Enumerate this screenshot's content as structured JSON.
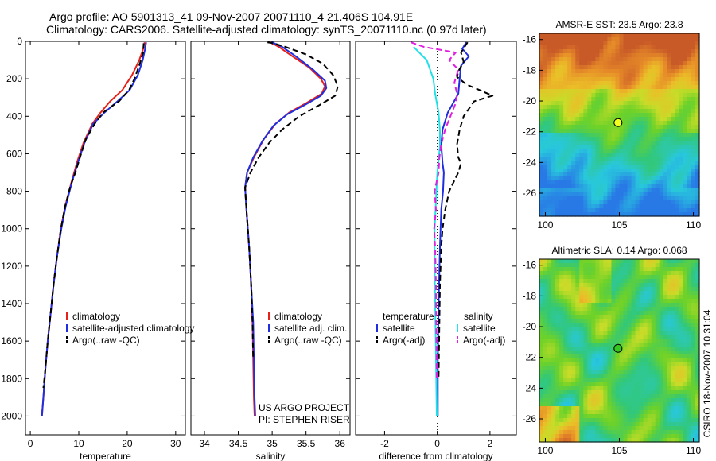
{
  "header": {
    "line1": "Argo profile: AO 5901313_41 09-Nov-2007 20071110_4 21.406S 104.91E",
    "line2": "Climatology: CARS2006. Satellite-adjusted climatology: synTS_20071110.nc (0.97d later)"
  },
  "side_label": "CSIRO 18-Nov-2007 10:31:04",
  "project": {
    "line1": "US ARGO PROJECT",
    "line2": "PI: STEPHEN RISER"
  },
  "colors": {
    "climatology": "#e8201a",
    "satellite": "#1f2fe0",
    "argo": "#000000",
    "satellite_s": "#22e0e6",
    "argo_s": "#e020e0"
  },
  "chart_data": [
    {
      "type": "line",
      "xlabel": "temperature",
      "ylabel": "",
      "xlim": [
        -1,
        32
      ],
      "ylim": [
        2100,
        0
      ],
      "xticks": [
        0,
        10,
        20,
        30
      ],
      "yticks": [
        0,
        200,
        400,
        600,
        800,
        1000,
        1200,
        1400,
        1600,
        1800,
        2000
      ],
      "legend": [
        "climatology",
        "satellite-adjusted climatology",
        "Argo(..raw -QC)"
      ],
      "series": [
        {
          "name": "climatology",
          "color": "#e8201a",
          "dash": "",
          "points": [
            [
              23.6,
              5
            ],
            [
              23.3,
              40
            ],
            [
              22.5,
              100
            ],
            [
              21,
              180
            ],
            [
              19,
              260
            ],
            [
              16.5,
              320
            ],
            [
              14.5,
              380
            ],
            [
              12.8,
              440
            ],
            [
              11,
              540
            ],
            [
              9.7,
              640
            ],
            [
              8.5,
              750
            ],
            [
              7.2,
              880
            ],
            [
              6.3,
              1000
            ],
            [
              5.5,
              1150
            ],
            [
              4.8,
              1300
            ],
            [
              4.2,
              1450
            ],
            [
              3.6,
              1600
            ],
            [
              3.1,
              1750
            ],
            [
              2.7,
              1900
            ],
            [
              2.4,
              2000
            ]
          ]
        },
        {
          "name": "satellite-adjusted climatology",
          "color": "#1f2fe0",
          "dash": "",
          "points": [
            [
              23.9,
              5
            ],
            [
              23.7,
              40
            ],
            [
              23.2,
              100
            ],
            [
              22.2,
              180
            ],
            [
              20.5,
              260
            ],
            [
              18,
              320
            ],
            [
              15.3,
              380
            ],
            [
              13,
              440
            ],
            [
              11.2,
              540
            ],
            [
              9.9,
              640
            ],
            [
              8.6,
              750
            ],
            [
              7.3,
              880
            ],
            [
              6.4,
              1000
            ],
            [
              5.5,
              1150
            ],
            [
              4.8,
              1300
            ],
            [
              4.2,
              1450
            ],
            [
              3.6,
              1600
            ],
            [
              3.1,
              1750
            ],
            [
              2.7,
              1900
            ],
            [
              2.4,
              2000
            ]
          ]
        },
        {
          "name": "Argo(..raw -QC)",
          "color": "#000000",
          "dash": "7,4",
          "points": [
            [
              23.4,
              10
            ],
            [
              23.3,
              60
            ],
            [
              22.6,
              120
            ],
            [
              21.5,
              200
            ],
            [
              20.4,
              260
            ],
            [
              18.3,
              320
            ],
            [
              15,
              380
            ],
            [
              13.3,
              440
            ],
            [
              11.5,
              520
            ],
            [
              10.5,
              600
            ],
            [
              9.3,
              700
            ],
            [
              8.2,
              780
            ],
            [
              7.2,
              880
            ],
            [
              6.3,
              1000
            ],
            [
              5.5,
              1150
            ],
            [
              4.8,
              1300
            ],
            [
              4.2,
              1450
            ],
            [
              3.6,
              1600
            ],
            [
              3.1,
              1750
            ],
            [
              2.7,
              1850
            ]
          ]
        }
      ]
    },
    {
      "type": "line",
      "xlabel": "salinity",
      "ylabel": "",
      "xlim": [
        33.8,
        36.15
      ],
      "ylim": [
        2100,
        0
      ],
      "xticks": [
        34,
        34.5,
        35,
        35.5,
        36
      ],
      "legend": [
        "climatology",
        "satellite adj. clim.",
        "Argo(..raw -QC)"
      ],
      "series": [
        {
          "name": "climatology",
          "color": "#e8201a",
          "dash": "",
          "points": [
            [
              34.98,
              5
            ],
            [
              35.1,
              30
            ],
            [
              35.3,
              80
            ],
            [
              35.55,
              140
            ],
            [
              35.72,
              200
            ],
            [
              35.78,
              240
            ],
            [
              35.73,
              280
            ],
            [
              35.5,
              330
            ],
            [
              35.25,
              380
            ],
            [
              35.05,
              440
            ],
            [
              34.88,
              520
            ],
            [
              34.73,
              620
            ],
            [
              34.63,
              700
            ],
            [
              34.6,
              780
            ],
            [
              34.62,
              900
            ],
            [
              34.66,
              1100
            ],
            [
              34.69,
              1300
            ],
            [
              34.71,
              1500
            ],
            [
              34.72,
              1700
            ],
            [
              34.73,
              1900
            ],
            [
              34.74,
              2000
            ]
          ]
        },
        {
          "name": "satellite adj. clim.",
          "color": "#1f2fe0",
          "dash": "",
          "points": [
            [
              35.0,
              5
            ],
            [
              35.15,
              30
            ],
            [
              35.35,
              80
            ],
            [
              35.6,
              150
            ],
            [
              35.78,
              210
            ],
            [
              35.8,
              250
            ],
            [
              35.72,
              290
            ],
            [
              35.48,
              340
            ],
            [
              35.22,
              390
            ],
            [
              35.02,
              450
            ],
            [
              34.86,
              530
            ],
            [
              34.72,
              620
            ],
            [
              34.63,
              700
            ],
            [
              34.6,
              780
            ],
            [
              34.62,
              900
            ],
            [
              34.66,
              1100
            ],
            [
              34.69,
              1300
            ],
            [
              34.72,
              1500
            ],
            [
              34.73,
              1700
            ],
            [
              34.74,
              1900
            ],
            [
              34.75,
              2000
            ]
          ]
        },
        {
          "name": "Argo(..raw -QC)",
          "color": "#000000",
          "dash": "7,4",
          "points": [
            [
              34.93,
              5
            ],
            [
              35.02,
              10
            ],
            [
              35.2,
              30
            ],
            [
              35.5,
              70
            ],
            [
              35.75,
              120
            ],
            [
              35.9,
              180
            ],
            [
              35.97,
              240
            ],
            [
              35.93,
              290
            ],
            [
              35.7,
              340
            ],
            [
              35.4,
              400
            ],
            [
              35.15,
              470
            ],
            [
              34.96,
              540
            ],
            [
              34.8,
              620
            ],
            [
              34.68,
              700
            ],
            [
              34.6,
              780
            ],
            [
              34.62,
              900
            ],
            [
              34.66,
              1100
            ],
            [
              34.69,
              1300
            ],
            [
              34.71,
              1500
            ],
            [
              34.72,
              1700
            ]
          ]
        }
      ]
    },
    {
      "type": "line",
      "xlabel": "difference from climatology",
      "ylabel": "",
      "xlim": [
        -3.1,
        3.0
      ],
      "ylim": [
        2100,
        0
      ],
      "xticks": [
        -2,
        0,
        2
      ],
      "legend_left_title": "temperature",
      "legend_right_title": "salinity",
      "legend": [
        "satellite",
        "Argo(-adj)",
        "satellite",
        "Argo(-adj)"
      ],
      "series": [
        {
          "name": "satellite",
          "color": "#1f2fe0",
          "dash": "",
          "points": [
            [
              1.1,
              5
            ],
            [
              0.95,
              40
            ],
            [
              1.2,
              80
            ],
            [
              0.9,
              130
            ],
            [
              0.85,
              200
            ],
            [
              0.8,
              280
            ],
            [
              0.4,
              380
            ],
            [
              0.2,
              470
            ],
            [
              0.15,
              550
            ],
            [
              0.2,
              650
            ],
            [
              0.25,
              700
            ],
            [
              0.22,
              800
            ],
            [
              0.15,
              900
            ],
            [
              0.1,
              1100
            ],
            [
              0.05,
              1400
            ],
            [
              0.02,
              1700
            ],
            [
              0.02,
              2000
            ]
          ]
        },
        {
          "name": "Argo(-adj)",
          "color": "#000000",
          "dash": "7,4",
          "points": [
            [
              1.15,
              5
            ],
            [
              0.9,
              60
            ],
            [
              1.0,
              110
            ],
            [
              0.8,
              160
            ],
            [
              0.75,
              190
            ],
            [
              1.1,
              230
            ],
            [
              2.1,
              290
            ],
            [
              1.4,
              320
            ],
            [
              1.0,
              400
            ],
            [
              0.85,
              470
            ],
            [
              0.75,
              550
            ],
            [
              0.8,
              620
            ],
            [
              0.9,
              650
            ],
            [
              0.8,
              700
            ],
            [
              0.45,
              800
            ],
            [
              0.3,
              900
            ],
            [
              0.2,
              1000
            ],
            [
              0.15,
              1100
            ],
            [
              0.1,
              1300
            ],
            [
              0.08,
              1500
            ],
            [
              0.05,
              1800
            ]
          ]
        },
        {
          "name": "satellite",
          "color": "#22e0e6",
          "dash": "",
          "points": [
            [
              -0.9,
              30
            ],
            [
              -0.4,
              100
            ],
            [
              -0.15,
              200
            ],
            [
              -0.08,
              280
            ],
            [
              0.05,
              380
            ],
            [
              0.1,
              480
            ],
            [
              0.1,
              560
            ],
            [
              0.0,
              700
            ],
            [
              -0.05,
              850
            ],
            [
              -0.1,
              1000
            ],
            [
              -0.1,
              1200
            ],
            [
              -0.08,
              1400
            ],
            [
              -0.05,
              1700
            ],
            [
              -0.02,
              2000
            ]
          ]
        },
        {
          "name": "Argo(-adj)",
          "color": "#e020e0",
          "dash": "7,4",
          "points": [
            [
              -1.0,
              5
            ],
            [
              -0.5,
              30
            ],
            [
              0.7,
              60
            ],
            [
              0.45,
              100
            ],
            [
              0.8,
              150
            ],
            [
              0.65,
              220
            ],
            [
              0.75,
              280
            ],
            [
              0.7,
              330
            ],
            [
              0.5,
              400
            ],
            [
              0.3,
              470
            ],
            [
              0.15,
              550
            ],
            [
              0.08,
              620
            ],
            [
              0.05,
              700
            ],
            [
              -0.1,
              800
            ],
            [
              -0.05,
              900
            ],
            [
              -0.12,
              1000
            ],
            [
              -0.08,
              1100
            ],
            [
              -0.05,
              1300
            ],
            [
              -0.04,
              1500
            ],
            [
              -0.02,
              1800
            ]
          ]
        }
      ]
    },
    {
      "type": "heatmap",
      "title": "AMSR-E SST: 23.5 Argo: 23.8",
      "xlim": [
        99.6,
        110.4
      ],
      "ylim": [
        -27.5,
        -15.6
      ],
      "xticks": [
        100,
        105,
        110
      ],
      "yticks": [
        -16,
        -18,
        -20,
        -22,
        -24,
        -26
      ],
      "marker": {
        "x": 104.91,
        "y": -21.406,
        "color": "#f0ff1c"
      }
    },
    {
      "type": "heatmap",
      "title": "Altimetric SLA: 0.14 Argo: 0.068",
      "xlim": [
        99.6,
        110.4
      ],
      "ylim": [
        -27.5,
        -15.6
      ],
      "xticks": [
        100,
        105,
        110
      ],
      "yticks": [
        -16,
        -18,
        -20,
        -22,
        -24,
        -26
      ],
      "marker": {
        "x": 104.91,
        "y": -21.406,
        "color": "#34c81e"
      }
    }
  ]
}
